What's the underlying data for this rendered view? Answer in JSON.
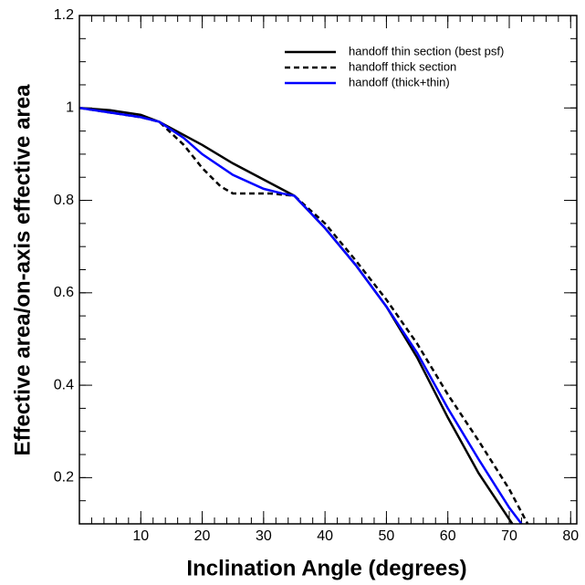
{
  "chart_data": {
    "type": "line",
    "xlabel": "Inclination Angle (degrees)",
    "ylabel": "Effective area/on-axis effective area",
    "xlim": [
      0,
      81
    ],
    "ylim": [
      0.1,
      1.2
    ],
    "xticks": [
      10,
      20,
      30,
      40,
      50,
      60,
      70,
      80
    ],
    "yticks": [
      0.2,
      0.4,
      0.6,
      0.8,
      1,
      1.2
    ],
    "legend": "upper right",
    "series": [
      {
        "name": "handoff thin section (best psf)",
        "color": "#000000",
        "dashed": false,
        "x": [
          0,
          5,
          10,
          13,
          20,
          25,
          30,
          35,
          40,
          45,
          50,
          55,
          60,
          65,
          70,
          70.5
        ],
        "values": [
          1.0,
          0.995,
          0.985,
          0.97,
          0.92,
          0.88,
          0.845,
          0.81,
          0.74,
          0.66,
          0.57,
          0.46,
          0.33,
          0.21,
          0.11,
          0.1
        ]
      },
      {
        "name": "handoff thick section",
        "color": "#000000",
        "dashed": true,
        "x": [
          0,
          10,
          13,
          17,
          20,
          23,
          25,
          28,
          31,
          35,
          40,
          45,
          50,
          55,
          60,
          65,
          70,
          73
        ],
        "values": [
          1.0,
          0.98,
          0.97,
          0.92,
          0.87,
          0.83,
          0.815,
          0.815,
          0.815,
          0.81,
          0.75,
          0.67,
          0.585,
          0.49,
          0.38,
          0.28,
          0.175,
          0.1
        ]
      },
      {
        "name": "handoff (thick+thin)",
        "color": "#0000ff",
        "dashed": false,
        "x": [
          0,
          10,
          13,
          17,
          20,
          25,
          30,
          33,
          35,
          40,
          45,
          50,
          55,
          60,
          65,
          70,
          72
        ],
        "values": [
          1.0,
          0.98,
          0.97,
          0.935,
          0.9,
          0.855,
          0.825,
          0.815,
          0.81,
          0.74,
          0.66,
          0.57,
          0.47,
          0.35,
          0.24,
          0.135,
          0.1
        ]
      }
    ]
  }
}
